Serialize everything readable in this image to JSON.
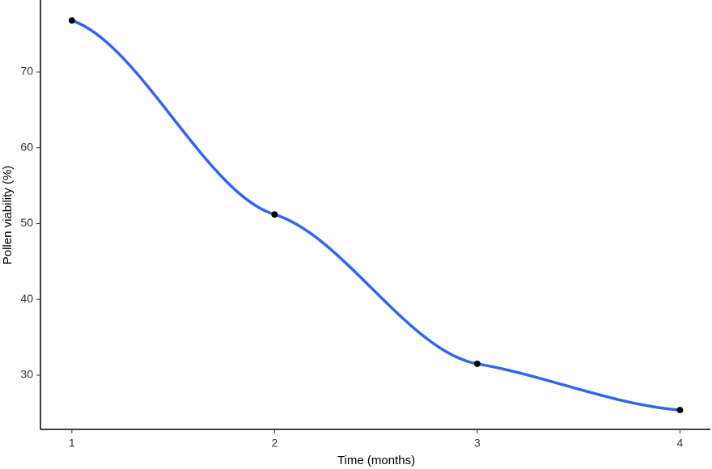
{
  "chart_data": {
    "type": "line",
    "x_label": "Time (months)",
    "y_label": "Pollen viability (%)",
    "x": [
      1,
      2,
      3,
      4
    ],
    "values": [
      76.8,
      51.2,
      31.5,
      25.4
    ],
    "color": "#3366ee",
    "point_color": "#000000",
    "xlim": [
      0.845,
      4.15
    ],
    "xticks": [
      1,
      2,
      3,
      4
    ],
    "ylim": [
      22.85,
      79.5
    ],
    "yticks": [
      30,
      40,
      50,
      60,
      70
    ]
  }
}
